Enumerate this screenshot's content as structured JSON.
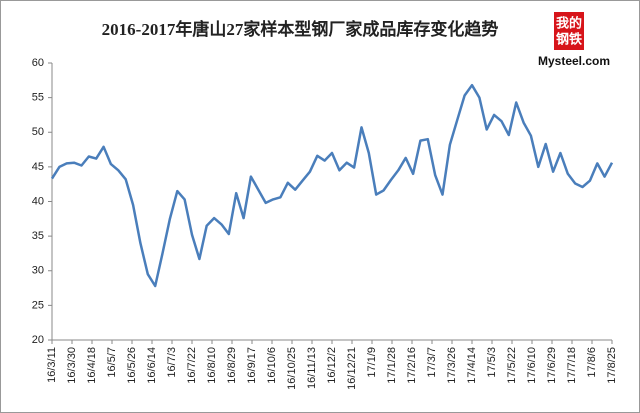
{
  "chart_data": {
    "type": "line",
    "title": "2016-2017年唐山27家样本型钢厂家成品库存变化趋势",
    "logo": {
      "line1": "我的",
      "line2": "钢铁",
      "site": "Mysteel.com"
    },
    "x": [
      "16/3/11",
      "16/3/18",
      "16/3/25",
      "16/4/1",
      "16/4/8",
      "16/4/15",
      "16/4/22",
      "16/4/29",
      "16/5/6",
      "16/5/13",
      "16/5/20",
      "16/5/27",
      "16/6/3",
      "16/6/10",
      "16/6/17",
      "16/6/24",
      "16/7/1",
      "16/7/8",
      "16/7/15",
      "16/7/22",
      "16/7/29",
      "16/8/5",
      "16/8/12",
      "16/8/19",
      "16/8/26",
      "16/9/2",
      "16/9/9",
      "16/9/16",
      "16/9/23",
      "16/9/30",
      "16/10/7",
      "16/10/14",
      "16/10/21",
      "16/10/28",
      "16/11/4",
      "16/11/11",
      "16/11/18",
      "16/11/25",
      "16/12/2",
      "16/12/9",
      "16/12/16",
      "16/12/23",
      "16/12/30",
      "17/1/6",
      "17/1/13",
      "17/1/20",
      "17/1/27",
      "17/2/3",
      "17/2/10",
      "17/2/17",
      "17/2/24",
      "17/3/3",
      "17/3/10",
      "17/3/17",
      "17/3/24",
      "17/3/31",
      "17/4/7",
      "17/4/14",
      "17/4/21",
      "17/4/28",
      "17/5/5",
      "17/5/12",
      "17/5/19",
      "17/5/26",
      "17/6/2",
      "17/6/9",
      "17/6/16",
      "17/6/23",
      "17/6/30",
      "17/7/7",
      "17/7/14",
      "17/7/21",
      "17/7/28",
      "17/8/4",
      "17/8/11",
      "17/8/18",
      "17/8/25"
    ],
    "series": [
      {
        "color": "#4a7ebb",
        "values": [
          43.3,
          45,
          45.5,
          45.6,
          45.2,
          46.5,
          46.2,
          47.9,
          45.4,
          44.5,
          43.2,
          39.5,
          34,
          29.5,
          27.8,
          32.5,
          37.5,
          41.5,
          40.3,
          35.2,
          31.7,
          36.5,
          37.6,
          36.7,
          35.3,
          41.2,
          37.6,
          43.6,
          41.7,
          39.8,
          40.3,
          40.6,
          42.7,
          41.7,
          43,
          44.3,
          46.6,
          45.9,
          47,
          44.5,
          45.6,
          44.9,
          50.7,
          47,
          41,
          41.6,
          43.1,
          44.5,
          46.3,
          44,
          48.8,
          49,
          43.8,
          41,
          48.2,
          51.8,
          55.3,
          56.8,
          55,
          50.4,
          52.5,
          51.6,
          49.6,
          54.3,
          51.4,
          49.5,
          45,
          48.3,
          44.3,
          47,
          44,
          42.6,
          42.1,
          43,
          45.5,
          43.6,
          45.6
        ]
      }
    ],
    "xlim": [
      "16/3/11",
      "17/8/25"
    ],
    "xticks": [
      "16/3/11",
      "16/3/30",
      "16/4/18",
      "16/5/7",
      "16/5/26",
      "16/6/14",
      "16/7/3",
      "16/7/22",
      "16/8/10",
      "16/8/29",
      "16/9/17",
      "16/10/6",
      "16/10/25",
      "16/11/13",
      "16/12/2",
      "16/12/21",
      "17/1/9",
      "17/1/28",
      "17/2/16",
      "17/3/7",
      "17/3/26",
      "17/4/14",
      "17/5/3",
      "17/5/22",
      "17/6/10",
      "17/6/29",
      "17/7/18",
      "17/8/6",
      "17/8/25"
    ],
    "ylim": [
      20,
      60
    ],
    "yticks": [
      20,
      25,
      30,
      35,
      40,
      45,
      50,
      55,
      60
    ],
    "grid": false
  }
}
